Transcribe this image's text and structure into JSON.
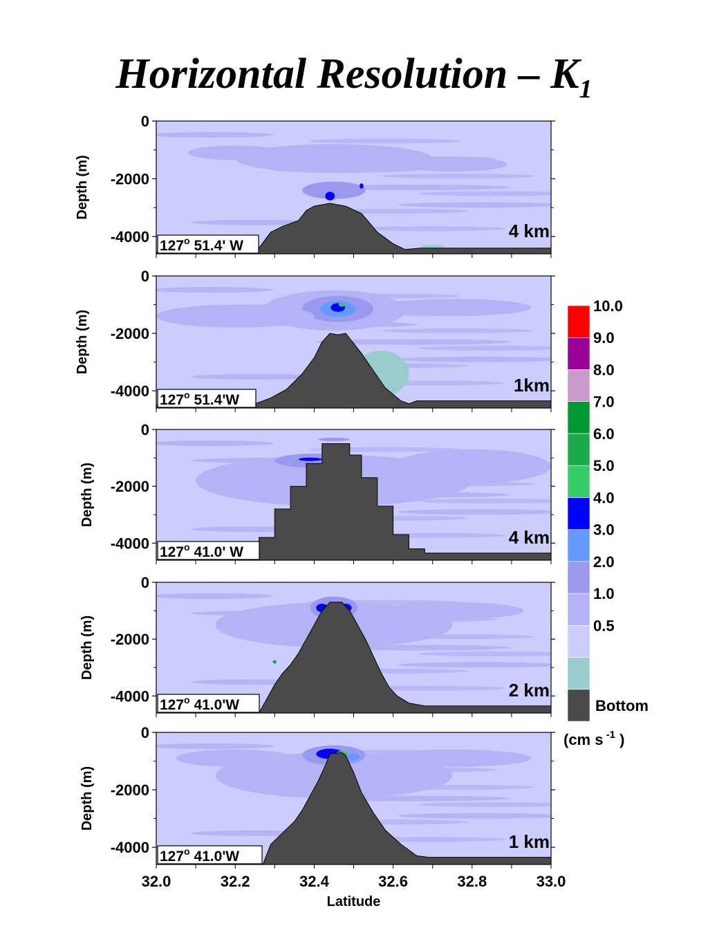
{
  "title": "Horizontal Resolution – K",
  "title_sub": "1",
  "chart_data": {
    "type": "contour",
    "xlabel": "Latitude",
    "ylabel": "Depth (m)",
    "xlim": [
      32.0,
      33.0
    ],
    "ylim": [
      -4600,
      0
    ],
    "x_ticks": [
      32.0,
      32.2,
      32.4,
      32.6,
      32.8,
      33.0
    ],
    "x_tick_labels": [
      "32.0",
      "32.2",
      "32.4",
      "32.6",
      "32.8",
      "33.0"
    ],
    "y_ticks": [
      0,
      -2000,
      -4000
    ],
    "y_tick_labels": [
      "0",
      "-2000",
      "-4000"
    ],
    "panels": [
      {
        "resolution": "4 km",
        "location_deg": "127",
        "location_rest": " 51.4' W",
        "bathymetry": [
          [
            32.0,
            -4550
          ],
          [
            32.26,
            -4400
          ],
          [
            32.29,
            -3850
          ],
          [
            32.32,
            -3650
          ],
          [
            32.36,
            -3450
          ],
          [
            32.38,
            -3100
          ],
          [
            32.4,
            -2950
          ],
          [
            32.44,
            -2850
          ],
          [
            32.48,
            -2950
          ],
          [
            32.52,
            -3200
          ],
          [
            32.56,
            -3850
          ],
          [
            32.6,
            -4250
          ],
          [
            32.63,
            -4450
          ],
          [
            32.67,
            -4400
          ],
          [
            33.0,
            -4400
          ]
        ]
      },
      {
        "resolution": "1km",
        "location_deg": "127",
        "location_rest": " 51.4'W",
        "bathymetry": [
          [
            32.0,
            -4500
          ],
          [
            32.25,
            -4450
          ],
          [
            32.29,
            -4250
          ],
          [
            32.33,
            -3950
          ],
          [
            32.37,
            -3400
          ],
          [
            32.4,
            -2850
          ],
          [
            32.42,
            -2300
          ],
          [
            32.44,
            -2000
          ],
          [
            32.46,
            -2050
          ],
          [
            32.48,
            -2000
          ],
          [
            32.5,
            -2350
          ],
          [
            32.52,
            -2700
          ],
          [
            32.55,
            -3300
          ],
          [
            32.58,
            -3900
          ],
          [
            32.62,
            -4350
          ],
          [
            32.64,
            -4450
          ],
          [
            32.66,
            -4350
          ],
          [
            33.0,
            -4350
          ]
        ]
      },
      {
        "resolution": "4 km",
        "location_deg": "127",
        "location_rest": " 41.0' W",
        "bathymetry": [
          [
            32.0,
            -4600
          ],
          [
            32.26,
            -4600
          ],
          [
            32.26,
            -3800
          ],
          [
            32.3,
            -3800
          ],
          [
            32.3,
            -2800
          ],
          [
            32.34,
            -2800
          ],
          [
            32.34,
            -2000
          ],
          [
            32.38,
            -2000
          ],
          [
            32.38,
            -1200
          ],
          [
            32.42,
            -1200
          ],
          [
            32.42,
            -500
          ],
          [
            32.49,
            -500
          ],
          [
            32.49,
            -900
          ],
          [
            32.52,
            -900
          ],
          [
            32.52,
            -1700
          ],
          [
            32.56,
            -1700
          ],
          [
            32.56,
            -2700
          ],
          [
            32.6,
            -2700
          ],
          [
            32.6,
            -3700
          ],
          [
            32.64,
            -3700
          ],
          [
            32.64,
            -4200
          ],
          [
            32.68,
            -4200
          ],
          [
            32.68,
            -4350
          ],
          [
            33.0,
            -4350
          ]
        ]
      },
      {
        "resolution": "2 km",
        "location_deg": "127",
        "location_rest": " 41.0'W",
        "bathymetry": [
          [
            32.0,
            -4600
          ],
          [
            32.26,
            -4600
          ],
          [
            32.28,
            -4100
          ],
          [
            32.3,
            -3600
          ],
          [
            32.32,
            -3200
          ],
          [
            32.34,
            -2900
          ],
          [
            32.36,
            -2500
          ],
          [
            32.38,
            -2000
          ],
          [
            32.4,
            -1500
          ],
          [
            32.42,
            -1000
          ],
          [
            32.44,
            -700
          ],
          [
            32.47,
            -700
          ],
          [
            32.49,
            -1000
          ],
          [
            32.51,
            -1500
          ],
          [
            32.53,
            -2000
          ],
          [
            32.55,
            -2600
          ],
          [
            32.57,
            -3200
          ],
          [
            32.59,
            -3700
          ],
          [
            32.61,
            -4000
          ],
          [
            32.64,
            -4250
          ],
          [
            32.68,
            -4350
          ],
          [
            33.0,
            -4350
          ]
        ]
      },
      {
        "resolution": "1 km",
        "location_deg": "127",
        "location_rest": " 41.0'W",
        "bathymetry": [
          [
            32.0,
            -4600
          ],
          [
            32.27,
            -4600
          ],
          [
            32.29,
            -3900
          ],
          [
            32.32,
            -3500
          ],
          [
            32.35,
            -3100
          ],
          [
            32.37,
            -2700
          ],
          [
            32.39,
            -2200
          ],
          [
            32.41,
            -1700
          ],
          [
            32.43,
            -1100
          ],
          [
            32.44,
            -750
          ],
          [
            32.47,
            -700
          ],
          [
            32.48,
            -800
          ],
          [
            32.5,
            -1400
          ],
          [
            32.52,
            -2100
          ],
          [
            32.55,
            -2800
          ],
          [
            32.58,
            -3400
          ],
          [
            32.62,
            -3900
          ],
          [
            32.66,
            -4300
          ],
          [
            32.69,
            -4350
          ],
          [
            33.0,
            -4350
          ]
        ]
      }
    ],
    "colorbar": {
      "title": "(cm s",
      "title_sup": "-1",
      "title_end": " )",
      "levels": [
        {
          "label": "Bottom",
          "color": "#4a4a4a"
        },
        {
          "label": "",
          "color": "#99cccc"
        },
        {
          "label": "0.5",
          "color": "#ccccff"
        },
        {
          "label": "1.0",
          "color": "#b3b3f5"
        },
        {
          "label": "2.0",
          "color": "#9999ee"
        },
        {
          "label": "3.0",
          "color": "#6699ff"
        },
        {
          "label": "4.0",
          "color": "#0000ff"
        },
        {
          "label": "5.0",
          "color": "#33cc66"
        },
        {
          "label": "6.0",
          "color": "#1aaa4a"
        },
        {
          "label": "7.0",
          "color": "#009933"
        },
        {
          "label": "8.0",
          "color": "#cc99cc"
        },
        {
          "label": "9.0",
          "color": "#990099"
        },
        {
          "label": "10.0",
          "color": "#ff0000"
        }
      ]
    },
    "colors": {
      "background_field": "#ccccff",
      "mid_field": "#b3b3f5",
      "strong_field": "#9999ee",
      "bottom": "#4a4a4a"
    }
  }
}
